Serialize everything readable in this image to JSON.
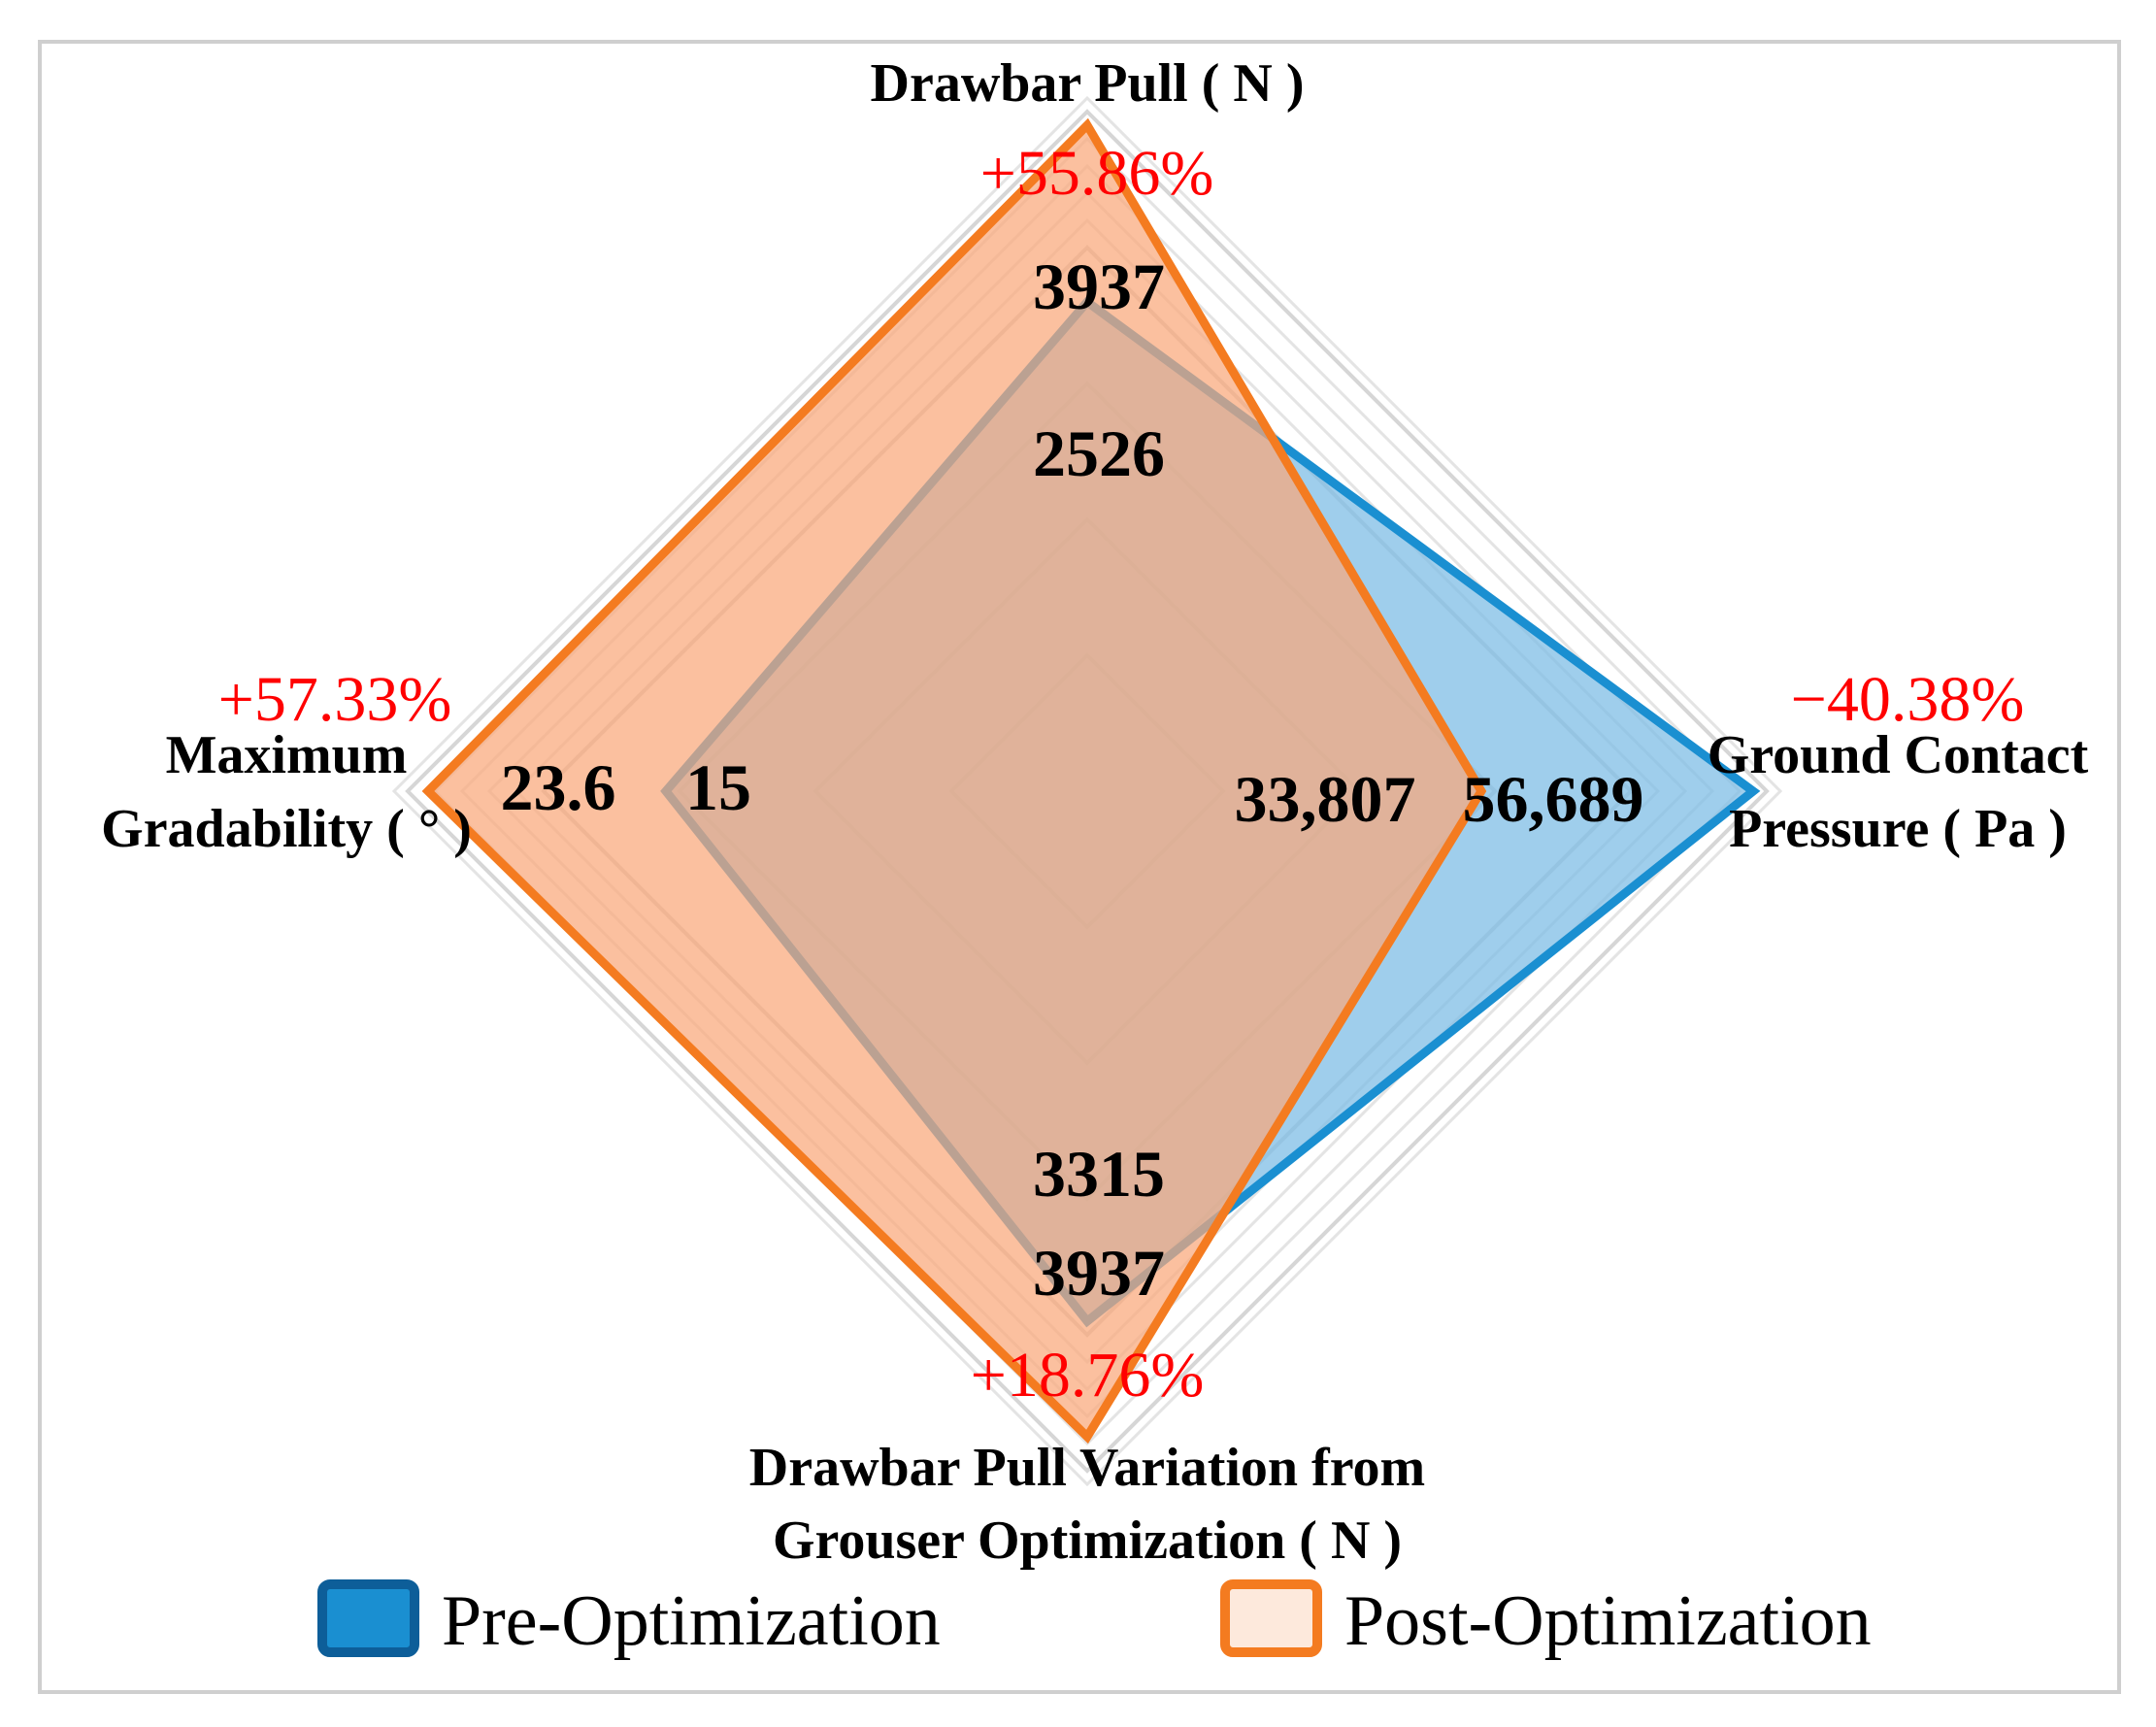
{
  "chart_data": {
    "type": "radar",
    "title": "",
    "axes": [
      {
        "key": "top",
        "label_lines": [
          "Drawbar Pull ( N )"
        ]
      },
      {
        "key": "right",
        "label_lines": [
          "Ground Contact",
          "Pressure ( Pa )"
        ]
      },
      {
        "key": "bottom",
        "label_lines": [
          "Drawbar Pull Variation from",
          "Grouser Optimization ( N )"
        ]
      },
      {
        "key": "left",
        "label_lines": [
          "Maximum",
          "Gradability ( ° )"
        ]
      }
    ],
    "series": [
      {
        "name": "Pre-Optimization",
        "color": "#1a8fd1",
        "fill": "#7fbde6",
        "values": [
          2526,
          56689,
          3315,
          15
        ],
        "value_labels": [
          "2526",
          "56,689",
          "3315",
          "15"
        ],
        "normalized": [
          0.72,
          0.98,
          0.78,
          0.62
        ]
      },
      {
        "name": "Post-Optimization",
        "color": "#f47b20",
        "fill": "#f9a77a",
        "values": [
          3937,
          33807,
          3937,
          23.6
        ],
        "value_labels": [
          "3937",
          "33,807",
          "3937",
          "23.6"
        ],
        "normalized": [
          0.98,
          0.58,
          0.95,
          0.97
        ]
      }
    ],
    "changes": [
      "+55.86%",
      "−40.38%",
      "+18.76%",
      "+57.33%"
    ],
    "grid_levels": 5,
    "legend": {
      "position": "bottom",
      "items": [
        {
          "label": "Pre-Optimization",
          "fill": "#1a8fd1",
          "stroke": "#0d5e99"
        },
        {
          "label": "Post-Optimization",
          "fill": "#fde9dc",
          "stroke": "#f47b20"
        }
      ]
    }
  }
}
